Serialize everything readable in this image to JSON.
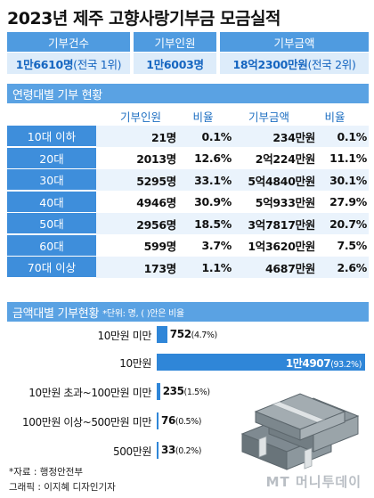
{
  "title": "2023년 제주 고향사랑기부금 모금실적",
  "summary": [
    {
      "label": "기부건수",
      "value": "1만6610명",
      "note": "(전국 1위)"
    },
    {
      "label": "기부인원",
      "value": "1만6003명",
      "note": ""
    },
    {
      "label": "기부금액",
      "value": "18억2300만원",
      "note": "(전국 2위)"
    }
  ],
  "age_section": {
    "title": "연령대별 기부 현황",
    "columns": [
      "기부인원",
      "비율",
      "기부금액",
      "비율"
    ],
    "rows": [
      {
        "label": "10대 이하",
        "people": "21명",
        "people_ratio": "0.1%",
        "amount": "234만원",
        "amount_ratio": "0.1%"
      },
      {
        "label": "20대",
        "people": "2013명",
        "people_ratio": "12.6%",
        "amount": "2억224만원",
        "amount_ratio": "11.1%"
      },
      {
        "label": "30대",
        "people": "5295명",
        "people_ratio": "33.1%",
        "amount": "5억4840만원",
        "amount_ratio": "30.1%"
      },
      {
        "label": "40대",
        "people": "4946명",
        "people_ratio": "30.9%",
        "amount": "5억933만원",
        "amount_ratio": "27.9%"
      },
      {
        "label": "50대",
        "people": "2956명",
        "people_ratio": "18.5%",
        "amount": "3억7817만원",
        "amount_ratio": "20.7%"
      },
      {
        "label": "60대",
        "people": "599명",
        "people_ratio": "3.7%",
        "amount": "1억3620만원",
        "amount_ratio": "7.5%"
      },
      {
        "label": "70대 이상",
        "people": "173명",
        "people_ratio": "1.1%",
        "amount": "4687만원",
        "amount_ratio": "2.6%"
      }
    ]
  },
  "amount_section": {
    "title": "금액대별 기부현황",
    "unit_note": "*단위: 명, ( )안은 비율"
  },
  "chart_data": {
    "type": "bar",
    "title": "금액대별 기부현황",
    "categories": [
      "10만원 미만",
      "10만원",
      "10만원 초과~100만원 미만",
      "100만원 이상~500만원 미만",
      "500만원"
    ],
    "values": [
      752,
      14907,
      235,
      76,
      33
    ],
    "value_labels": [
      "752",
      "1만4907",
      "235",
      "76",
      "33"
    ],
    "pct_labels": [
      "(4.7%)",
      "(93.2%)",
      "(1.5%)",
      "(0.5%)",
      "(0.2%)"
    ],
    "xlabel": "",
    "ylabel": "",
    "xlim": [
      0,
      14907
    ]
  },
  "footer": {
    "source": "*자료 : 행정안전부",
    "credit": "그래픽 : 이지혜 디자인기자"
  },
  "brand": "MT 머니투데이",
  "colors": {
    "accent": "#2f86d8",
    "header": "#4f9be0",
    "light": "#ddecfa"
  }
}
